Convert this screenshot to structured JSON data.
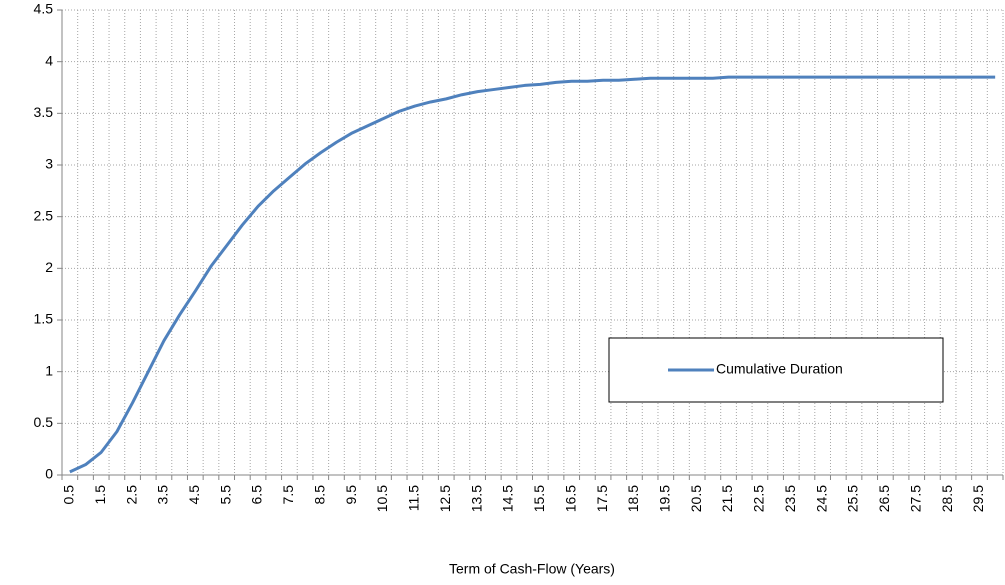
{
  "chart_data": {
    "type": "line",
    "x_label": "Term of Cash-Flow (Years)",
    "categories": [
      "0.5",
      null,
      "1.5",
      null,
      "2.5",
      null,
      "3.5",
      null,
      "4.5",
      null,
      "5.5",
      null,
      "6.5",
      null,
      "7.5",
      null,
      "8.5",
      null,
      "9.5",
      null,
      "10.5",
      null,
      "11.5",
      null,
      "12.5",
      null,
      "13.5",
      null,
      "14.5",
      null,
      "15.5",
      null,
      "16.5",
      null,
      "17.5",
      null,
      "18.5",
      null,
      "19.5",
      null,
      "20.5",
      null,
      "21.5",
      null,
      "22.5",
      null,
      "23.5",
      null,
      "24.5",
      null,
      "25.5",
      null,
      "26.5",
      null,
      "27.5",
      null,
      "28.5",
      null,
      "29.5",
      null
    ],
    "series": [
      {
        "name": "Cumulative Duration",
        "color": "#4f81bd",
        "values": [
          0.03,
          0.1,
          0.22,
          0.42,
          0.7,
          1.0,
          1.3,
          1.55,
          1.78,
          2.02,
          2.22,
          2.42,
          2.6,
          2.75,
          2.88,
          3.01,
          3.12,
          3.22,
          3.31,
          3.38,
          3.45,
          3.52,
          3.57,
          3.61,
          3.64,
          3.68,
          3.71,
          3.73,
          3.75,
          3.77,
          3.78,
          3.8,
          3.81,
          3.81,
          3.82,
          3.82,
          3.83,
          3.84,
          3.84,
          3.84,
          3.84,
          3.84,
          3.85,
          3.85,
          3.85,
          3.85,
          3.85,
          3.85,
          3.85,
          3.85,
          3.85,
          3.85,
          3.85,
          3.85,
          3.85,
          3.85,
          3.85,
          3.85,
          3.85,
          3.85
        ]
      }
    ],
    "ylim": [
      0,
      4.5
    ],
    "yticks": [
      0,
      0.5,
      1,
      1.5,
      2,
      2.5,
      3,
      3.5,
      4,
      4.5
    ],
    "grid": true
  }
}
